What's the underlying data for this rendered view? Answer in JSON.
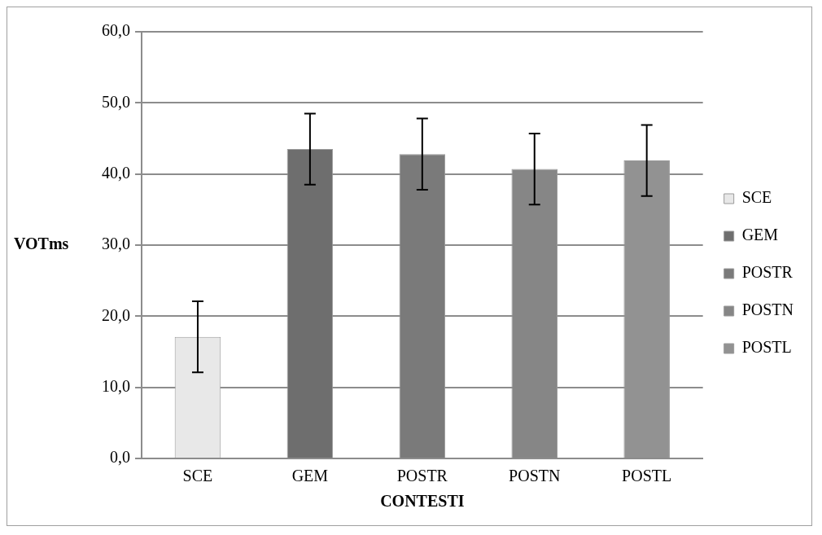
{
  "chart_data": {
    "type": "bar",
    "xlabel": "CONTESTI",
    "ylabel": "VOTms",
    "categories": [
      "SCE",
      "GEM",
      "POSTR",
      "POSTN",
      "POSTL"
    ],
    "series": [
      {
        "name": "SCE",
        "color": "#e8e8e8",
        "values": [
          17.1,
          null,
          null,
          null,
          null
        ],
        "errors": [
          5.0,
          null,
          null,
          null,
          null
        ]
      },
      {
        "name": "GEM",
        "color": "#6e6e6e",
        "values": [
          null,
          43.5,
          null,
          null,
          null
        ],
        "errors": [
          null,
          5.0,
          null,
          null,
          null
        ]
      },
      {
        "name": "POSTR",
        "color": "#7a7a7a",
        "values": [
          null,
          null,
          42.8,
          null,
          null
        ],
        "errors": [
          null,
          null,
          5.0,
          null,
          null
        ]
      },
      {
        "name": "POSTN",
        "color": "#868686",
        "values": [
          null,
          null,
          null,
          40.7,
          null
        ],
        "errors": [
          null,
          null,
          null,
          5.0,
          null
        ]
      },
      {
        "name": "POSTL",
        "color": "#929292",
        "values": [
          null,
          null,
          null,
          null,
          41.9
        ],
        "errors": [
          null,
          null,
          null,
          null,
          5.0
        ]
      }
    ],
    "ylim": [
      0,
      60
    ],
    "yticks": [
      {
        "value": 0,
        "label": "0,0"
      },
      {
        "value": 10,
        "label": "10,0"
      },
      {
        "value": 20,
        "label": "20,0"
      },
      {
        "value": 30,
        "label": "30,0"
      },
      {
        "value": 40,
        "label": "40,0"
      },
      {
        "value": 50,
        "label": "50,0"
      },
      {
        "value": 60,
        "label": "60,0"
      }
    ],
    "grid": "y",
    "legend": "right"
  }
}
